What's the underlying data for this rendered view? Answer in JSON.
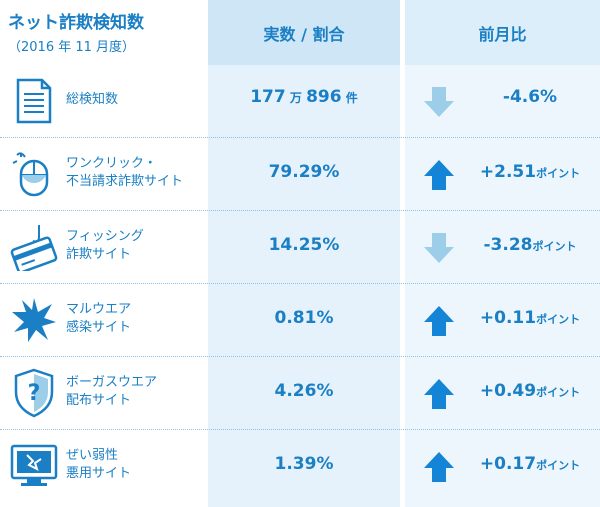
{
  "header": {
    "title": "ネット詐欺検知数",
    "subtitle": "（2016 年 11 月度）",
    "col_value": "実数 / 割合",
    "col_change": "前月比"
  },
  "rows": [
    {
      "label1": "総検知数",
      "label2": "",
      "value": "177",
      "value_unit1": "万",
      "value2": "896",
      "value_unit2": "件",
      "change": "-4.6%",
      "change_unit": "",
      "direction": "down"
    },
    {
      "label1": "ワンクリック・",
      "label2": "不当請求詐欺サイト",
      "value": "79.29%",
      "change": "+2.51",
      "change_unit": "ポイント",
      "direction": "up"
    },
    {
      "label1": "フィッシング",
      "label2": "詐欺サイト",
      "value": "14.25%",
      "change": "-3.28",
      "change_unit": "ポイント",
      "direction": "down"
    },
    {
      "label1": "マルウエア",
      "label2": "感染サイト",
      "value": "0.81%",
      "change": "+0.11",
      "change_unit": "ポイント",
      "direction": "up"
    },
    {
      "label1": "ボーガスウエア",
      "label2": "配布サイト",
      "value": "4.26%",
      "change": "+0.49",
      "change_unit": "ポイント",
      "direction": "up"
    },
    {
      "label1": "ぜい弱性",
      "label2": "悪用サイト",
      "value": "1.39%",
      "change": "+0.17",
      "change_unit": "ポイント",
      "direction": "up"
    }
  ],
  "icons": [
    "document-icon",
    "mouse-icon",
    "credit-card-hook-icon",
    "malware-burst-icon",
    "shield-question-icon",
    "broken-monitor-icon"
  ],
  "colors": {
    "text": "#1a7fc4",
    "up_arrow": "#1485d6",
    "down_arrow": "#9ccde9",
    "header_bg": "#cfe6f7"
  }
}
